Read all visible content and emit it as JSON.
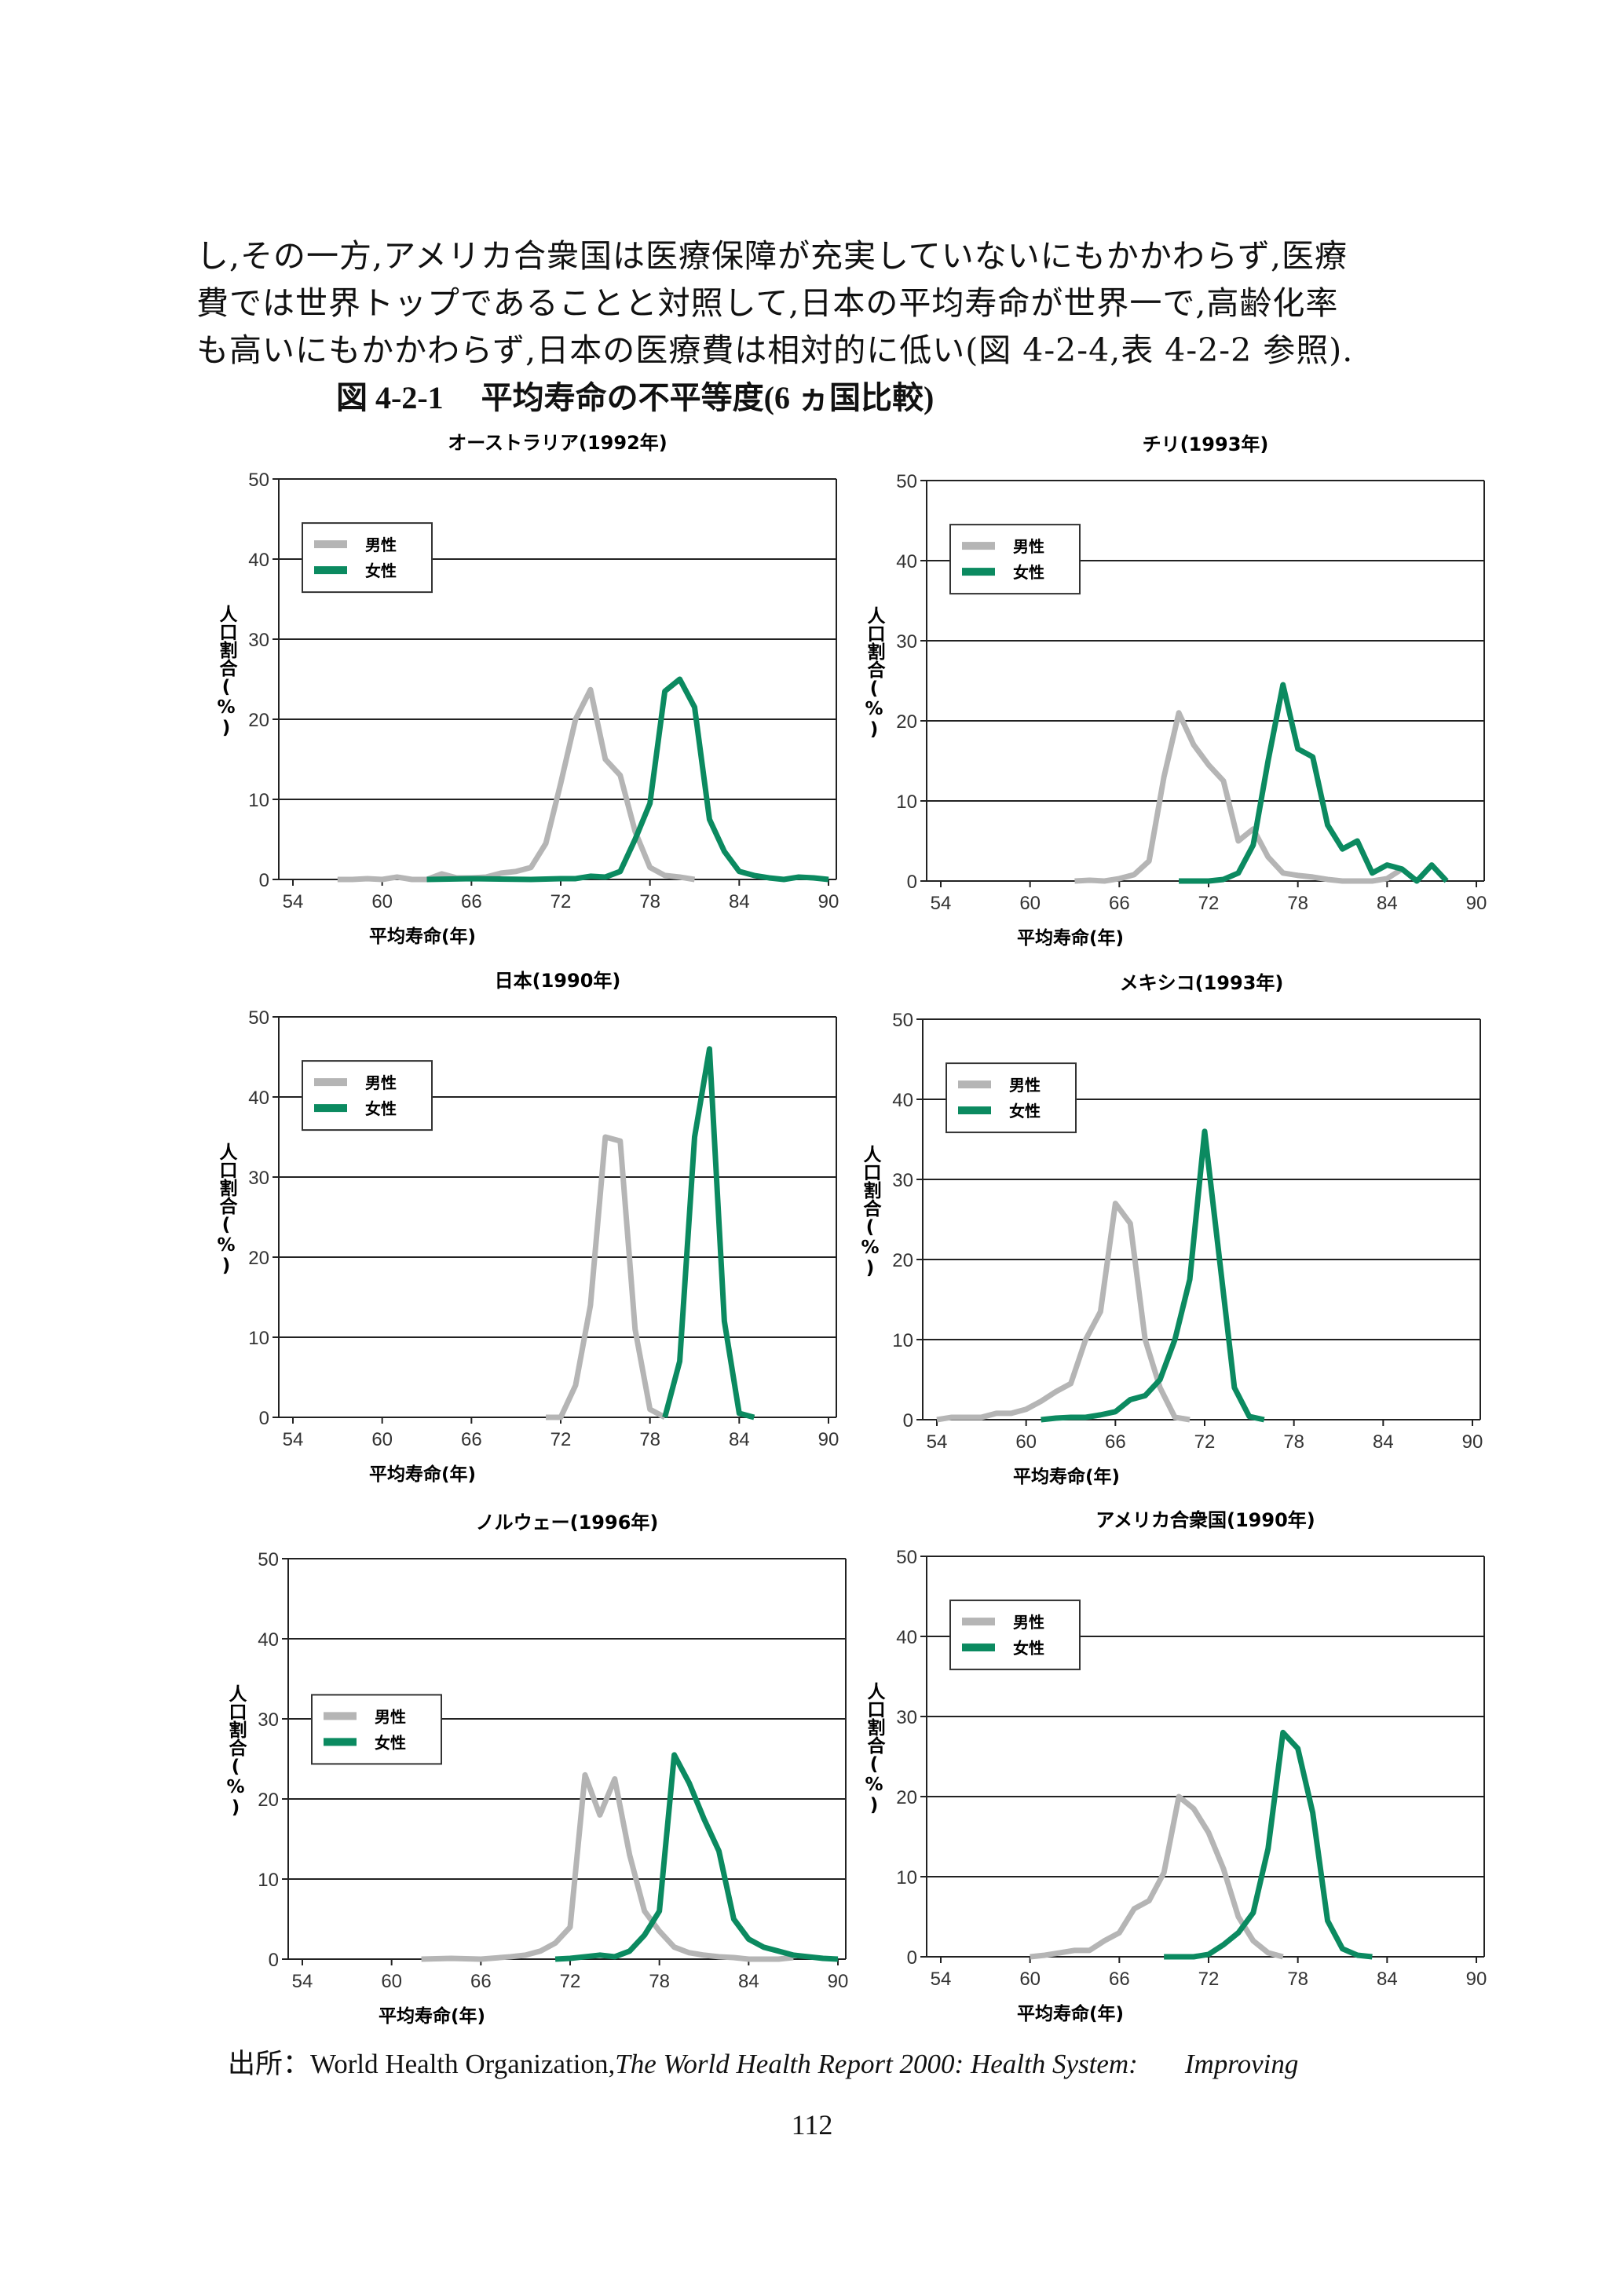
{
  "body_text": {
    "line1": "し,その一方,アメリカ合衆国は医療保障が充実していないにもかかわらず,医療",
    "line2": "費では世界トップであることと対照して,日本の平均寿命が世界一で,高齢化率",
    "line3": "も高いにもかかわらず,日本の医療費は相対的に低い(図 4-2-4,表 4-2-2 参照)."
  },
  "figure": {
    "number": "図 4-2-1",
    "title": "平均寿命の不平等度(6 ヵ国比較)"
  },
  "source": {
    "prefix": "出所：World Health Organization,",
    "title": "The World Health Report 2000: Health System:",
    "cont": "Improving"
  },
  "page_number": "112",
  "colors": {
    "male": "#b5b5b5",
    "female": "#0b8a60"
  },
  "chart_data": [
    {
      "type": "line",
      "title": "オーストラリア(1992年)",
      "xlabel": "平均寿命(年)",
      "ylabel": "人口割合(%)",
      "xlim": [
        54,
        90
      ],
      "ylim": [
        0,
        50
      ],
      "xticks": [
        54,
        60,
        66,
        72,
        78,
        84,
        90
      ],
      "yticks": [
        0,
        10,
        20,
        30,
        40,
        50
      ],
      "grid": true,
      "legend_position": "upper-left",
      "series": [
        {
          "name": "男性",
          "x": [
            57,
            58,
            59,
            60,
            61,
            62,
            63,
            64,
            65,
            66,
            67,
            68,
            69,
            70,
            71,
            72,
            73,
            74,
            75,
            76,
            77,
            78,
            79,
            80,
            81
          ],
          "y": [
            0,
            0,
            0.1,
            0,
            0.3,
            0,
            0,
            0.7,
            0.2,
            0.2,
            0.3,
            0.8,
            1,
            1.5,
            4.5,
            12,
            20,
            23.7,
            15,
            13,
            6,
            1.5,
            0.5,
            0.3,
            0
          ]
        },
        {
          "name": "女性",
          "x": [
            63,
            66,
            70,
            72,
            73,
            74,
            75,
            76,
            77,
            78,
            79,
            80,
            81,
            82,
            83,
            84,
            85,
            86,
            87,
            88,
            89,
            90
          ],
          "y": [
            0,
            0.1,
            0,
            0.1,
            0.1,
            0.4,
            0.3,
            1,
            5,
            9.5,
            23.5,
            25,
            21.5,
            7.5,
            3.5,
            1,
            0.5,
            0.2,
            0,
            0.3,
            0.2,
            0
          ]
        }
      ]
    },
    {
      "type": "line",
      "title": "チリ(1993年)",
      "xlabel": "平均寿命(年)",
      "ylabel": "人口割合(%)",
      "xlim": [
        54,
        90
      ],
      "ylim": [
        0,
        50
      ],
      "xticks": [
        54,
        60,
        66,
        72,
        78,
        84,
        90
      ],
      "yticks": [
        0,
        10,
        20,
        30,
        40,
        50
      ],
      "grid": true,
      "legend_position": "upper-left",
      "series": [
        {
          "name": "男性",
          "x": [
            63,
            64,
            65,
            66,
            67,
            68,
            69,
            70,
            71,
            72,
            73,
            74,
            75,
            76,
            77,
            78,
            79,
            80,
            81,
            82,
            83,
            84,
            85
          ],
          "y": [
            0,
            0.1,
            0,
            0.3,
            0.8,
            2.5,
            13,
            21,
            17,
            14.5,
            12.5,
            5,
            6.5,
            3,
            1,
            0.7,
            0.5,
            0.2,
            0,
            0,
            0,
            0.3,
            1.5
          ]
        },
        {
          "name": "女性",
          "x": [
            70,
            72,
            73,
            74,
            75,
            76,
            77,
            78,
            79,
            80,
            81,
            82,
            83,
            84,
            85,
            86,
            87,
            88
          ],
          "y": [
            0,
            0,
            0.2,
            1,
            4.5,
            15,
            24.5,
            16.5,
            15.5,
            7,
            4,
            5,
            1,
            2,
            1.5,
            0,
            2,
            0
          ]
        }
      ]
    },
    {
      "type": "line",
      "title": "日本(1990年)",
      "xlabel": "平均寿命(年)",
      "ylabel": "人口割合(%)",
      "xlim": [
        54,
        90
      ],
      "ylim": [
        0,
        50
      ],
      "xticks": [
        54,
        60,
        66,
        72,
        78,
        84,
        90
      ],
      "yticks": [
        0,
        10,
        20,
        30,
        40,
        50
      ],
      "grid": true,
      "legend_position": "upper-left",
      "series": [
        {
          "name": "男性",
          "x": [
            71,
            72,
            73,
            74,
            75,
            76,
            77,
            78,
            79
          ],
          "y": [
            0,
            0,
            4,
            14,
            35,
            34.5,
            11,
            1,
            0
          ]
        },
        {
          "name": "女性",
          "x": [
            79,
            80,
            81,
            82,
            83,
            84,
            85
          ],
          "y": [
            0,
            7,
            35,
            46,
            12,
            0.5,
            0
          ]
        }
      ]
    },
    {
      "type": "line",
      "title": "メキシコ(1993年)",
      "xlabel": "平均寿命(年)",
      "ylabel": "人口割合(%)",
      "xlim": [
        54,
        90
      ],
      "ylim": [
        0,
        50
      ],
      "xticks": [
        54,
        60,
        66,
        72,
        78,
        84,
        90
      ],
      "yticks": [
        0,
        10,
        20,
        30,
        40,
        50
      ],
      "grid": true,
      "legend_position": "upper-left",
      "series": [
        {
          "name": "男性",
          "x": [
            54,
            55,
            56,
            57,
            58,
            59,
            60,
            61,
            62,
            63,
            64,
            65,
            66,
            67,
            68,
            69,
            70,
            71
          ],
          "y": [
            0,
            0.3,
            0.3,
            0.3,
            0.8,
            0.8,
            1.3,
            2.3,
            3.5,
            4.5,
            10,
            13.5,
            27,
            24.5,
            10,
            4,
            0.3,
            0
          ]
        },
        {
          "name": "女性",
          "x": [
            61,
            62,
            63,
            64,
            65,
            66,
            67,
            68,
            69,
            70,
            71,
            72,
            73,
            74,
            75,
            76
          ],
          "y": [
            0,
            0.2,
            0.3,
            0.3,
            0.6,
            1,
            2.5,
            3,
            5,
            10,
            17.5,
            36,
            20,
            4,
            0.4,
            0
          ]
        }
      ]
    },
    {
      "type": "line",
      "title": "ノルウェー(1996年)",
      "xlabel": "平均寿命(年)",
      "ylabel": "人口割合(%)",
      "xlim": [
        54,
        90
      ],
      "ylim": [
        0,
        50
      ],
      "xticks": [
        54,
        60,
        66,
        72,
        78,
        84,
        90
      ],
      "yticks": [
        0,
        10,
        20,
        30,
        40,
        50
      ],
      "grid": true,
      "legend_position": "center-left",
      "series": [
        {
          "name": "男性",
          "x": [
            62,
            64,
            66,
            68,
            69,
            70,
            71,
            72,
            73,
            74,
            75,
            76,
            77,
            78,
            79,
            80,
            81,
            82,
            83,
            84,
            86,
            87
          ],
          "y": [
            0,
            0.1,
            0,
            0.3,
            0.5,
            1,
            2,
            4,
            23,
            18,
            22.5,
            13,
            6,
            3.5,
            1.5,
            0.8,
            0.5,
            0.3,
            0.2,
            0,
            0,
            0.2
          ]
        },
        {
          "name": "女性",
          "x": [
            71,
            72,
            73,
            74,
            75,
            76,
            77,
            78,
            79,
            80,
            81,
            82,
            83,
            84,
            85,
            86,
            87,
            88,
            89,
            90
          ],
          "y": [
            0,
            0.1,
            0.3,
            0.5,
            0.3,
            1,
            3,
            6,
            25.5,
            22,
            17.5,
            13.5,
            5,
            2.5,
            1.5,
            1,
            0.5,
            0.3,
            0.1,
            0
          ]
        }
      ]
    },
    {
      "type": "line",
      "title": "アメリカ合衆国(1990年)",
      "xlabel": "平均寿命(年)",
      "ylabel": "人口割合(%)",
      "xlim": [
        54,
        90
      ],
      "ylim": [
        0,
        50
      ],
      "xticks": [
        54,
        60,
        66,
        72,
        78,
        84,
        90
      ],
      "yticks": [
        0,
        10,
        20,
        30,
        40,
        50
      ],
      "grid": true,
      "legend_position": "upper-left",
      "series": [
        {
          "name": "男性",
          "x": [
            60,
            61,
            62,
            63,
            64,
            65,
            66,
            67,
            68,
            69,
            70,
            71,
            72,
            73,
            74,
            75,
            76,
            77
          ],
          "y": [
            0,
            0.2,
            0.5,
            0.8,
            0.8,
            2,
            3,
            6,
            7,
            10.5,
            20,
            18.5,
            15.5,
            11,
            5,
            2,
            0.5,
            0
          ]
        },
        {
          "name": "女性",
          "x": [
            69,
            70,
            71,
            72,
            73,
            74,
            75,
            76,
            77,
            78,
            79,
            80,
            81,
            82,
            83
          ],
          "y": [
            0,
            0,
            0,
            0.3,
            1.5,
            3,
            5.5,
            13.5,
            28,
            26,
            18,
            4.5,
            1,
            0.2,
            0
          ]
        }
      ]
    }
  ]
}
